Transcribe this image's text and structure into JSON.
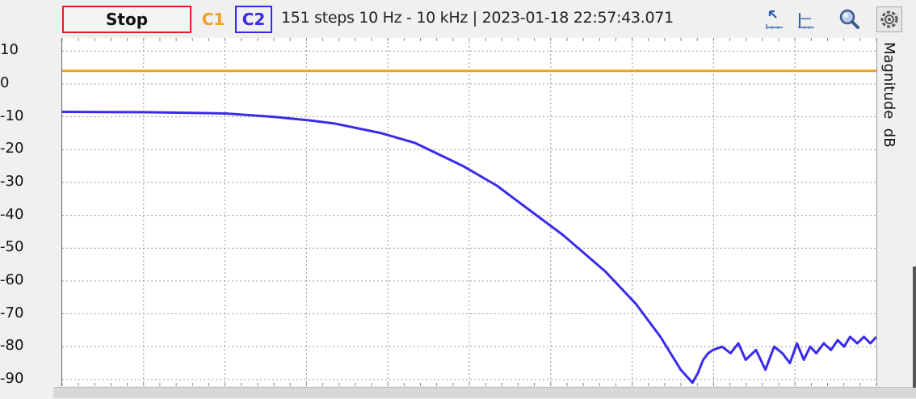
{
  "toolbar": {
    "stop_label": "Stop",
    "c1_label": "C1",
    "c2_label": "C2",
    "sweep_info": "151 steps  10 Hz - 10 kHz | 2023-01-18 22:57:43.071",
    "icons": [
      "cursor-x-icon",
      "cursor-y-icon",
      "zoom-icon",
      "settings-icon"
    ]
  },
  "colors": {
    "stop_border": "#e02020",
    "c1": "#f0a020",
    "c2": "#3a2be8",
    "grid": "#9a9a9a"
  },
  "chart_data": {
    "type": "line",
    "ylabel": "Magnitude  dB",
    "ylim": [
      -92,
      14
    ],
    "y_ticks": [
      "10",
      "0",
      "-10",
      "-20",
      "-30",
      "-40",
      "-50",
      "-60",
      "-70",
      "-80",
      "-90"
    ],
    "x_scale": "log",
    "xlim": [
      10,
      10000
    ],
    "grid": true,
    "series": [
      {
        "name": "C1",
        "color": "#f0a020",
        "x": [
          10,
          10000
        ],
        "y": [
          4,
          4
        ]
      },
      {
        "name": "C2",
        "color": "#3a2be8",
        "x": [
          10,
          20,
          30,
          40,
          60,
          80,
          100,
          150,
          200,
          300,
          400,
          500,
          700,
          1000,
          1300,
          1600,
          1900,
          2100,
          2200,
          2300,
          2400,
          2500,
          2700,
          2900,
          3100,
          3300,
          3600,
          3900,
          4200,
          4500,
          4800,
          5100,
          5400,
          5700,
          6000,
          6400,
          6800,
          7200,
          7600,
          8000,
          8500,
          9000,
          9500,
          10000
        ],
        "y": [
          -8.5,
          -8.6,
          -8.8,
          -9,
          -10,
          -11,
          -12,
          -15,
          -18,
          -25,
          -31,
          -37,
          -46,
          -57,
          -67,
          -77,
          -87,
          -91,
          -88,
          -84,
          -82,
          -81,
          -80,
          -82,
          -79,
          -84,
          -81,
          -87,
          -80,
          -82,
          -85,
          -79,
          -84,
          -80,
          -82,
          -79,
          -81,
          -78,
          -80,
          -77,
          -79,
          -77,
          -79,
          -77
        ]
      }
    ]
  }
}
